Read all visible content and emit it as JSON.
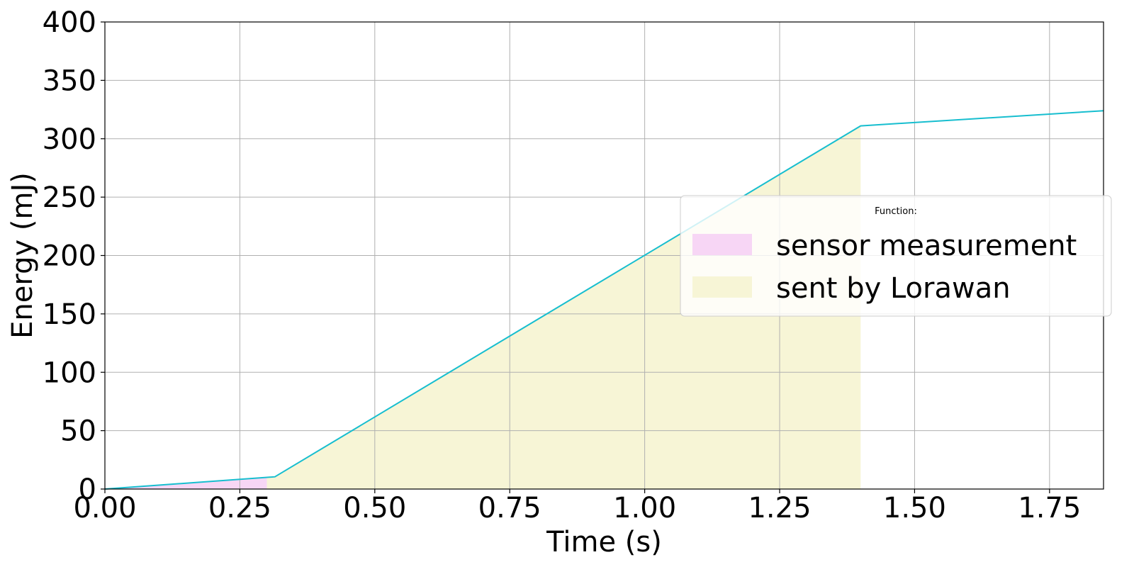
{
  "chart_data": {
    "type": "area",
    "xlabel": "Time (s)",
    "ylabel": "Energy (mJ)",
    "xlim": [
      0,
      1.85
    ],
    "ylim": [
      0,
      400
    ],
    "x_ticks": [
      "0.00",
      "0.25",
      "0.50",
      "0.75",
      "1.00",
      "1.25",
      "1.50",
      "1.75"
    ],
    "y_ticks": [
      "0",
      "50",
      "100",
      "150",
      "200",
      "250",
      "300",
      "350",
      "400"
    ],
    "grid": true,
    "line": {
      "color": "#17becf",
      "x": [
        0,
        0.315,
        1.4,
        1.85
      ],
      "y": [
        0,
        10.5,
        311,
        324
      ]
    },
    "areas": [
      {
        "name": "sensor measurement",
        "color": "#f7d6f5",
        "x_start": 0,
        "x_end": 0.3
      },
      {
        "name": "sent by Lorawan",
        "color": "#f7f5d6",
        "x_start": 0.3,
        "x_end": 1.4
      }
    ],
    "legend": {
      "title": "Function:",
      "placement": "center-right",
      "entries": [
        "sensor measurement",
        "sent by Lorawan"
      ]
    }
  }
}
